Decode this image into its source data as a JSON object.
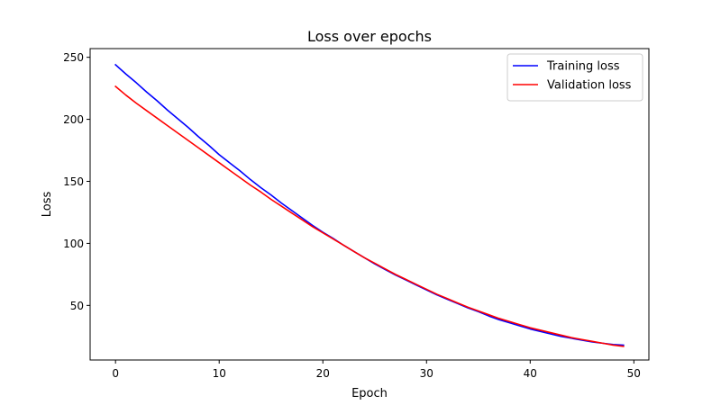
{
  "chart_data": {
    "type": "line",
    "title": "Loss over epochs",
    "xlabel": "Epoch",
    "ylabel": "Loss",
    "xlim": [
      -2.45,
      51.45
    ],
    "ylim": [
      6.0,
      257.0
    ],
    "xticks": [
      0,
      10,
      20,
      30,
      40,
      50
    ],
    "yticks": [
      50,
      100,
      150,
      200,
      250
    ],
    "grid": false,
    "legend": "top-right",
    "x": [
      0,
      1,
      2,
      3,
      4,
      5,
      6,
      7,
      8,
      9,
      10,
      11,
      12,
      13,
      14,
      15,
      16,
      17,
      18,
      19,
      20,
      21,
      22,
      23,
      24,
      25,
      26,
      27,
      28,
      29,
      30,
      31,
      32,
      33,
      34,
      35,
      36,
      37,
      38,
      39,
      40,
      41,
      42,
      43,
      44,
      45,
      46,
      47,
      48,
      49
    ],
    "series": [
      {
        "name": "Training loss",
        "color": "#0000ff",
        "values": [
          244.0,
          236.5,
          229.5,
          222.0,
          215.0,
          207.5,
          200.5,
          193.5,
          186.0,
          179.0,
          171.5,
          165.0,
          158.5,
          151.5,
          145.0,
          139.0,
          132.5,
          126.5,
          120.5,
          114.5,
          109.0,
          104.0,
          98.5,
          93.5,
          88.5,
          83.5,
          79.0,
          74.5,
          70.5,
          66.5,
          62.5,
          58.5,
          55.0,
          51.5,
          48.0,
          45.0,
          41.5,
          38.5,
          36.0,
          33.5,
          31.0,
          29.0,
          27.0,
          25.0,
          23.5,
          22.0,
          20.5,
          19.5,
          18.5,
          18.0
        ]
      },
      {
        "name": "Validation loss",
        "color": "#ff0000",
        "values": [
          226.5,
          219.5,
          213.0,
          207.0,
          201.0,
          195.0,
          189.0,
          183.0,
          177.0,
          171.0,
          165.0,
          159.0,
          153.0,
          147.0,
          141.5,
          135.5,
          130.0,
          124.5,
          119.0,
          113.5,
          108.5,
          103.5,
          98.5,
          93.5,
          88.5,
          84.0,
          79.5,
          75.0,
          71.0,
          67.0,
          63.0,
          59.0,
          55.5,
          52.0,
          48.5,
          45.5,
          42.5,
          39.5,
          37.0,
          34.5,
          32.0,
          30.0,
          28.0,
          26.0,
          24.0,
          22.5,
          21.0,
          19.5,
          18.0,
          17.0
        ]
      }
    ]
  }
}
